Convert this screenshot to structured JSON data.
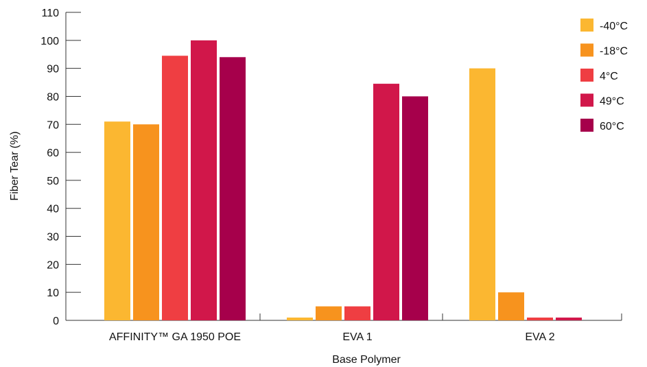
{
  "chart_data": {
    "type": "bar",
    "title": "",
    "xlabel": "Base Polymer",
    "ylabel": "Fiber Tear (%)",
    "ylim": [
      0,
      110
    ],
    "yticks": [
      0,
      10,
      20,
      30,
      40,
      50,
      60,
      70,
      80,
      90,
      100,
      110
    ],
    "categories": [
      "AFFINITY™ GA 1950 POE",
      "EVA 1",
      "EVA 2"
    ],
    "series": [
      {
        "name": "-40°C",
        "color": "#FBB731",
        "values": [
          71,
          1,
          90
        ]
      },
      {
        "name": "-18°C",
        "color": "#F7931E",
        "values": [
          70,
          5,
          10
        ]
      },
      {
        "name": "4°C",
        "color": "#EF3E42",
        "values": [
          94.5,
          5,
          1
        ]
      },
      {
        "name": "49°C",
        "color": "#D1174A",
        "values": [
          100,
          84.5,
          1
        ]
      },
      {
        "name": "60°C",
        "color": "#A6004B",
        "values": [
          94,
          80,
          0
        ]
      }
    ],
    "grid": false,
    "legend_position": "top-right"
  }
}
